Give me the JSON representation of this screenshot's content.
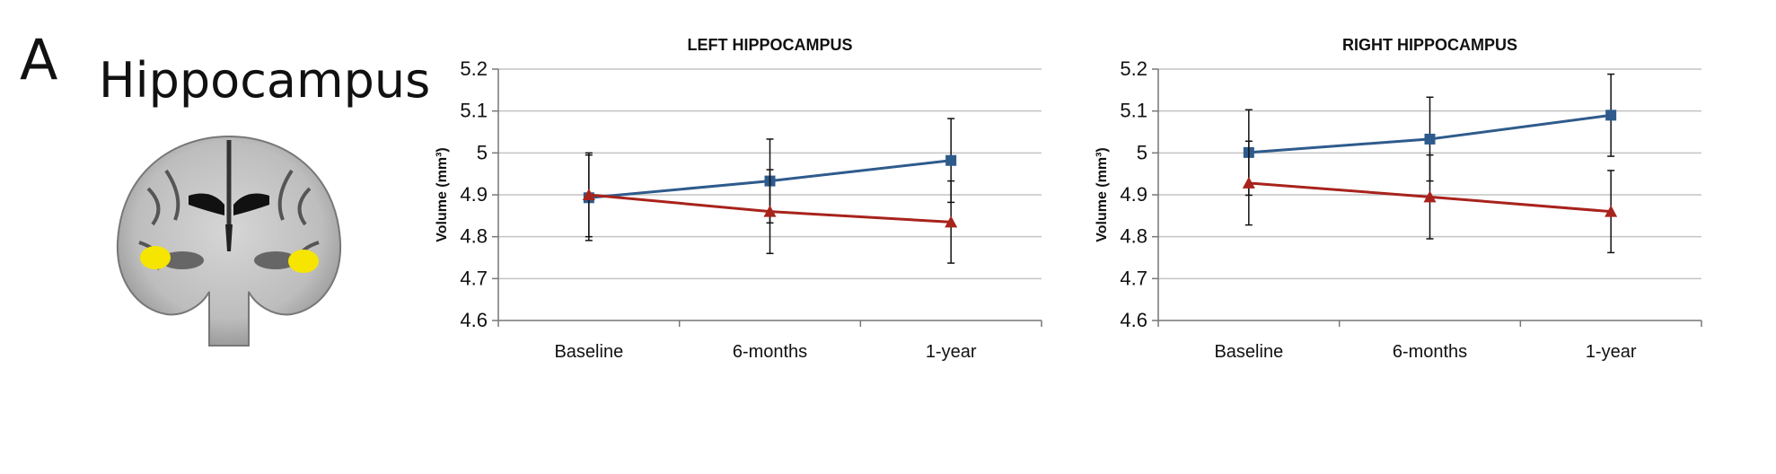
{
  "figure": {
    "panel_letter": "A",
    "region_title": "Hippocampus"
  },
  "colors": {
    "series_blue": "#2e5b8c",
    "series_red": "#a8231c",
    "highlight": "#f5e500"
  },
  "chart_data": [
    {
      "type": "line",
      "title": "LEFT HIPPOCAMPUS",
      "ylabel": "Volume (mm³)",
      "xlabel": "",
      "categories": [
        "Baseline",
        "6-months",
        "1-year"
      ],
      "yticks": [
        "4.6",
        "4.7",
        "4.8",
        "4.9",
        "5",
        "5.1",
        "5.2"
      ],
      "ylim": [
        4.6,
        5.2
      ],
      "grid": true,
      "series": [
        {
          "color": "#2e5b8c",
          "marker": "square",
          "values": [
            4.893,
            4.933,
            4.982
          ],
          "error": [
            0.102,
            0.1,
            0.1
          ]
        },
        {
          "color": "#a8231c",
          "marker": "triangle",
          "values": [
            4.9,
            4.86,
            4.835
          ],
          "error": [
            0.1,
            0.1,
            0.098
          ]
        }
      ]
    },
    {
      "type": "line",
      "title": "RIGHT HIPPOCAMPUS",
      "ylabel": "Volume (mm³)",
      "xlabel": "",
      "categories": [
        "Baseline",
        "6-months",
        "1-year"
      ],
      "yticks": [
        "4.6",
        "4.7",
        "4.8",
        "4.9",
        "5",
        "5.1",
        "5.2"
      ],
      "ylim": [
        4.6,
        5.2
      ],
      "grid": true,
      "series": [
        {
          "color": "#2e5b8c",
          "marker": "square",
          "values": [
            5.001,
            5.033,
            5.09
          ],
          "error": [
            0.102,
            0.1,
            0.098
          ]
        },
        {
          "color": "#a8231c",
          "marker": "triangle",
          "values": [
            4.928,
            4.895,
            4.86
          ],
          "error": [
            0.1,
            0.1,
            0.098
          ]
        }
      ]
    }
  ]
}
